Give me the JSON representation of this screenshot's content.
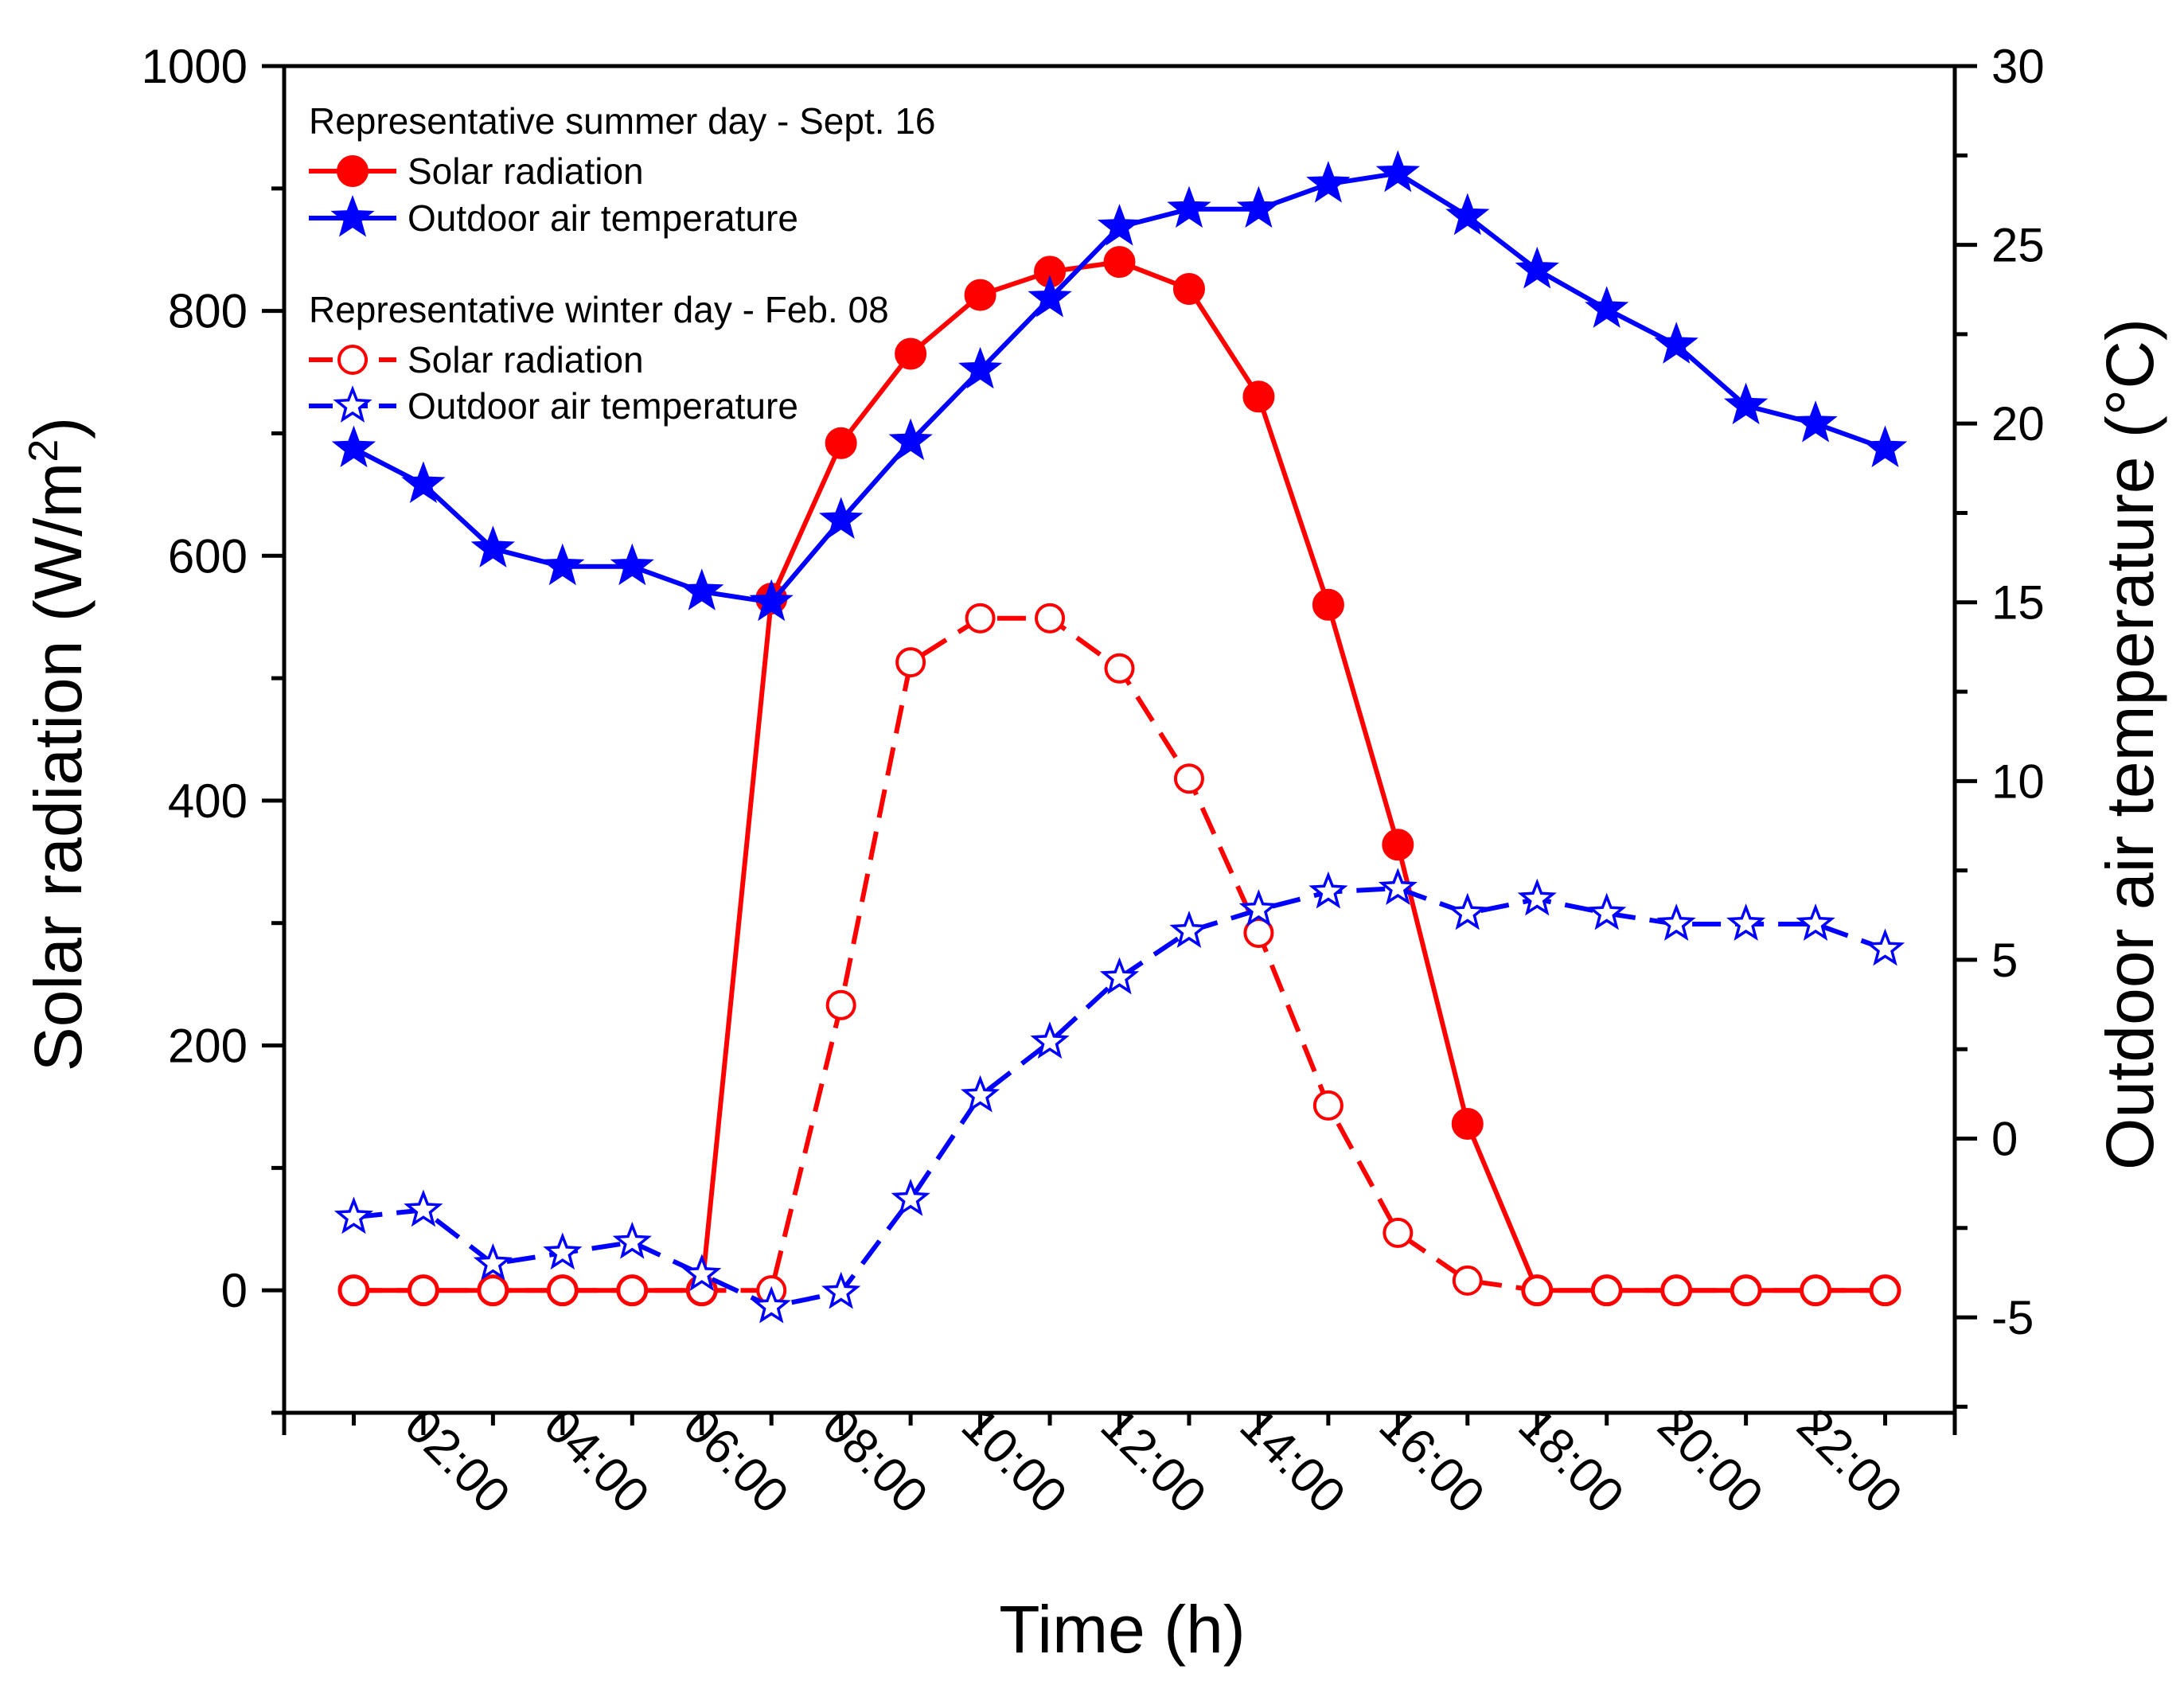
{
  "chart_data": {
    "type": "line",
    "title": "",
    "xlabel": "Time (h)",
    "ylabel_left_main": "Solar radiation (W/m",
    "ylabel_left_sup": "2",
    "ylabel_left_close": ")",
    "ylabel_right": "Outdoor air temperature (°C)",
    "xlim": [
      0,
      24
    ],
    "ylim_left": [
      -100,
      1000
    ],
    "ylim_right": [
      -7.67,
      30
    ],
    "x_tick_values": [
      2,
      4,
      6,
      8,
      10,
      12,
      14,
      16,
      18,
      20,
      22
    ],
    "x_tick_labels": [
      "02:00",
      "04:00",
      "06:00",
      "08:00",
      "10:00",
      "12:00",
      "14:00",
      "16:00",
      "18:00",
      "20:00",
      "22:00"
    ],
    "y_left_tick_values": [
      0,
      200,
      400,
      600,
      800,
      1000
    ],
    "y_left_tick_labels": [
      "0",
      "200",
      "400",
      "600",
      "800",
      "1000"
    ],
    "y_right_tick_values": [
      -5,
      0,
      5,
      10,
      15,
      20,
      25,
      30
    ],
    "y_right_tick_labels": [
      "-5",
      "0",
      "5",
      "10",
      "15",
      "20",
      "25",
      "30"
    ],
    "grid": false,
    "legend_position": "top-left",
    "legend": {
      "summer_header": "Representative summer day - Sept. 16",
      "winter_header": "Representative winter day - Feb. 08",
      "entries": [
        {
          "label": "Solar radiation",
          "series": 0
        },
        {
          "label": "Outdoor air temperature",
          "series": 1
        },
        {
          "label": "Solar radiation",
          "series": 2
        },
        {
          "label": "Outdoor air temperature",
          "series": 3
        }
      ]
    },
    "x": [
      1,
      2,
      3,
      4,
      5,
      6,
      7,
      8,
      9,
      10,
      11,
      12,
      13,
      14,
      15,
      16,
      17,
      18,
      19,
      20,
      21,
      22,
      23
    ],
    "series": [
      {
        "name": "Solar radiation (summer, Sept. 16)",
        "axis": "left",
        "color": "#ff0000",
        "dash": "solid",
        "marker": "circle",
        "filled": true,
        "values": [
          0,
          0,
          0,
          0,
          0,
          0,
          565,
          692,
          765,
          813,
          832,
          840,
          818,
          730,
          560,
          364,
          136,
          0,
          0,
          0,
          0,
          0,
          0
        ]
      },
      {
        "name": "Outdoor air temperature (summer, Sept. 16)",
        "axis": "right",
        "color": "#0000ff",
        "dash": "solid",
        "marker": "star",
        "filled": true,
        "values": [
          19.3,
          18.3,
          16.5,
          16.0,
          16.0,
          15.3,
          15.0,
          17.3,
          19.5,
          21.5,
          23.5,
          25.5,
          26.0,
          26.0,
          26.7,
          27.0,
          25.8,
          24.3,
          23.2,
          22.2,
          20.5,
          20.0,
          19.3
        ]
      },
      {
        "name": "Solar radiation (winter, Feb. 08)",
        "axis": "left",
        "color": "#ff0000",
        "dash": "dashed",
        "marker": "circle",
        "filled": false,
        "values": [
          0,
          0,
          0,
          0,
          0,
          0,
          0,
          233,
          513,
          549,
          549,
          508,
          418,
          292,
          151,
          47,
          8,
          0,
          0,
          0,
          0,
          0,
          0
        ]
      },
      {
        "name": "Outdoor air temperature (winter, Feb. 08)",
        "axis": "right",
        "color": "#0000ff",
        "dash": "dashed",
        "marker": "star",
        "filled": false,
        "values": [
          -2.2,
          -2.0,
          -3.5,
          -3.2,
          -2.9,
          -3.8,
          -4.7,
          -4.3,
          -1.7,
          1.2,
          2.7,
          4.5,
          5.8,
          6.4,
          6.9,
          7.0,
          6.3,
          6.7,
          6.3,
          6.0,
          6.0,
          6.0,
          5.3
        ]
      }
    ]
  }
}
